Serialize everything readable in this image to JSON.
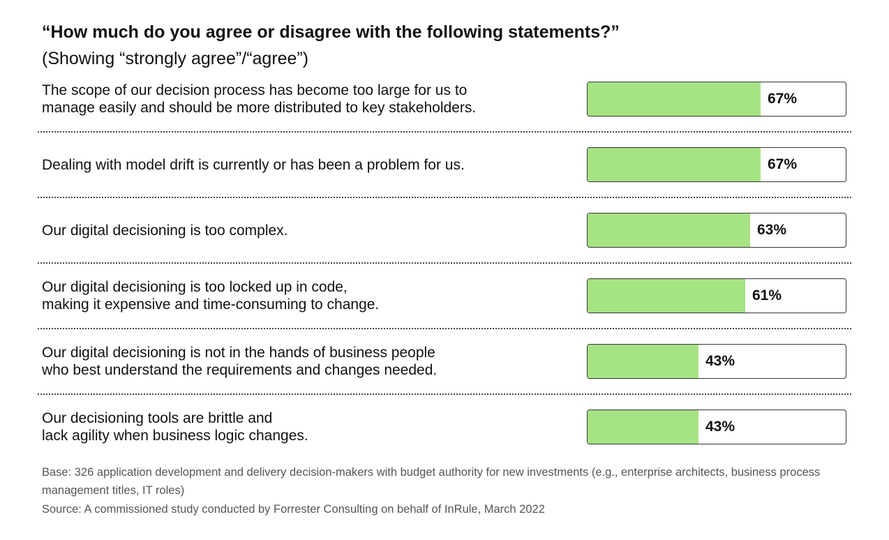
{
  "chart_data": {
    "type": "bar",
    "orientation": "horizontal",
    "title": "“How much do you agree or disagree with the following statements?”",
    "subtitle": "(Showing “strongly agree”/“agree”)",
    "xlim": [
      0,
      100
    ],
    "grid": false,
    "legend": "none",
    "categories": [
      "The scope of our decision process has become too large for us to\nmanage easily and should be more distributed to key stakeholders.",
      "Dealing with model drift is currently or has been a problem for us.",
      "Our digital decisioning is too complex.",
      "Our digital decisioning is too locked up in code,\nmaking it expensive and time-consuming to change.",
      "Our digital decisioning is not in the hands of business people\nwho best understand the requirements and changes needed.",
      "Our decisioning tools are brittle and\nlack agility when business logic changes."
    ],
    "values": [
      67,
      67,
      63,
      61,
      43,
      43
    ],
    "data_labels": [
      "67%",
      "67%",
      "63%",
      "61%",
      "43%",
      "43%"
    ],
    "bar_color": "#a6e384",
    "track_border_color": "#333333"
  },
  "footnotes": {
    "base": "Base: 326 application development and delivery decision-makers with budget authority for new investments (e.g., enterprise architects, business process management titles, IT roles)",
    "source": "Source: A commissioned study conducted by Forrester Consulting on behalf of InRule, March 2022"
  }
}
